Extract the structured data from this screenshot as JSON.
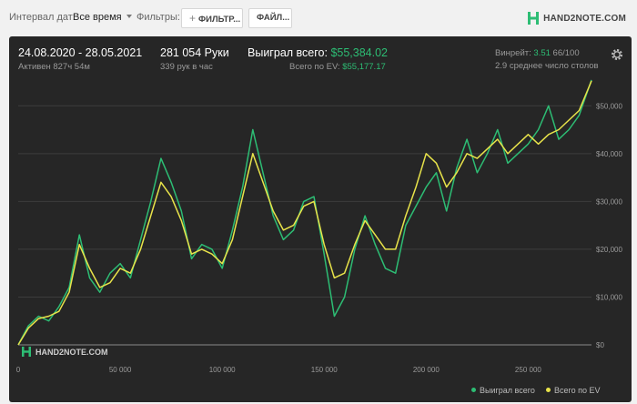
{
  "toolbar": {
    "date_interval_label": "Интервал дат:",
    "date_interval_value": "Все время",
    "filters_label": "Фильтры:",
    "filters_button": "ФИЛЬТР...",
    "files_button": "ФАЙЛ...",
    "logo_text": "HAND2NOTE.COM"
  },
  "summary": {
    "date_range": "24.08.2020 - 28.05.2021",
    "active_time": "Активен 827ч 54м",
    "hands": "281 054 Руки",
    "hands_per_hour": "339 рук в час",
    "won_total_label": "Выиграл всего:",
    "won_total_value": "$55,384.02",
    "ev_total_label": "Всего по EV:",
    "ev_total_value": "$55,177.17",
    "winrate_label": "Винрейт:",
    "winrate_value": "3.51",
    "winrate_unit": "66/100",
    "tables_avg": "2.9 среднее число столов"
  },
  "watermark": "HAND2NOTE.COM",
  "colors": {
    "won": "#2dbd74",
    "ev": "#e8e34a",
    "panel": "#262626",
    "accent": "#2dbd74"
  },
  "icons": [
    "gear-icon",
    "plus-icon",
    "chevron-down-icon"
  ],
  "chart_data": {
    "type": "line",
    "xlabel": "",
    "ylabel": "",
    "xlim": [
      0,
      281054
    ],
    "ylim": [
      0,
      55000
    ],
    "x_ticks": [
      0,
      50000,
      100000,
      150000,
      200000,
      250000
    ],
    "x_tick_labels": [
      "0",
      "50 000",
      "100 000",
      "150 000",
      "200 000",
      "250 000"
    ],
    "y_ticks": [
      0,
      10000,
      20000,
      30000,
      40000,
      50000
    ],
    "y_tick_labels": [
      "$0",
      "$10,000",
      "$20,000",
      "$30,000",
      "$40,000",
      "$50,000"
    ],
    "grid": true,
    "legend_position": "bottom-right",
    "series": [
      {
        "name": "Выиграл всего",
        "color": "#2dbd74",
        "x": [
          0,
          5000,
          10000,
          15000,
          20000,
          25000,
          30000,
          35000,
          40000,
          45000,
          50000,
          55000,
          60000,
          65000,
          70000,
          75000,
          80000,
          85000,
          90000,
          95000,
          100000,
          105000,
          110000,
          115000,
          120000,
          125000,
          130000,
          135000,
          140000,
          145000,
          150000,
          155000,
          160000,
          165000,
          170000,
          175000,
          180000,
          185000,
          190000,
          195000,
          200000,
          205000,
          210000,
          215000,
          220000,
          225000,
          230000,
          235000,
          240000,
          245000,
          250000,
          255000,
          260000,
          265000,
          270000,
          275000,
          281054
        ],
        "values": [
          0,
          4000,
          6000,
          5000,
          8000,
          12000,
          23000,
          14000,
          11000,
          15000,
          17000,
          14000,
          22000,
          30000,
          39000,
          34000,
          28000,
          18000,
          21000,
          20000,
          16000,
          24000,
          33000,
          45000,
          36000,
          27000,
          22000,
          24000,
          30000,
          31000,
          19000,
          6000,
          10000,
          20000,
          27000,
          21000,
          16000,
          15000,
          25000,
          29000,
          33000,
          36000,
          28000,
          37000,
          43000,
          36000,
          40000,
          45000,
          38000,
          40000,
          42000,
          45000,
          50000,
          43000,
          45000,
          48000,
          55400
        ]
      },
      {
        "name": "Всего по EV",
        "color": "#e8e34a",
        "x": [
          0,
          5000,
          10000,
          15000,
          20000,
          25000,
          30000,
          35000,
          40000,
          45000,
          50000,
          55000,
          60000,
          65000,
          70000,
          75000,
          80000,
          85000,
          90000,
          95000,
          100000,
          105000,
          110000,
          115000,
          120000,
          125000,
          130000,
          135000,
          140000,
          145000,
          150000,
          155000,
          160000,
          165000,
          170000,
          175000,
          180000,
          185000,
          190000,
          195000,
          200000,
          205000,
          210000,
          215000,
          220000,
          225000,
          230000,
          235000,
          240000,
          245000,
          250000,
          255000,
          260000,
          265000,
          270000,
          275000,
          281054
        ],
        "values": [
          0,
          3500,
          5500,
          6000,
          7000,
          11000,
          21000,
          16000,
          12000,
          13000,
          16000,
          15000,
          20000,
          27000,
          34000,
          31000,
          26000,
          19000,
          20000,
          19000,
          17000,
          22000,
          31000,
          40000,
          34000,
          28000,
          24000,
          25000,
          29000,
          30000,
          21000,
          14000,
          15000,
          21000,
          26000,
          23000,
          20000,
          20000,
          27000,
          33000,
          40000,
          38000,
          33000,
          36000,
          40000,
          39000,
          41000,
          43000,
          40000,
          42000,
          44000,
          42000,
          44000,
          45000,
          47000,
          49000,
          55200
        ]
      }
    ]
  }
}
